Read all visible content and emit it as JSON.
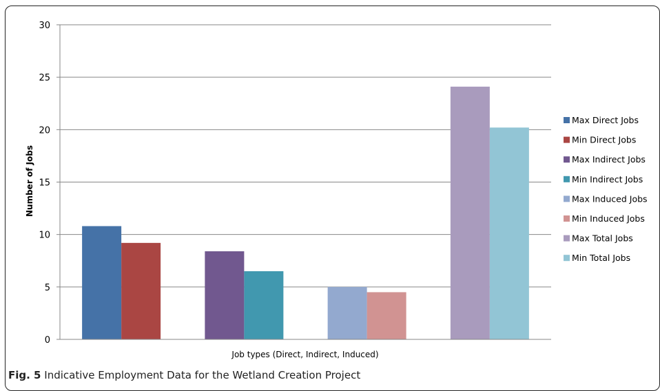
{
  "chart_data": {
    "type": "bar",
    "xlabel": "Job types (Direct, Indirect, Induced)",
    "ylabel": "Number of Jobs",
    "ylim": [
      0,
      30
    ],
    "yticks": [
      0,
      5,
      10,
      15,
      20,
      25,
      30
    ],
    "grid": true,
    "legend_position": "right",
    "groups": [
      [
        "Max Direct Jobs",
        "Min Direct Jobs"
      ],
      [
        "Max Indirect Jobs",
        "Min Indirect Jobs"
      ],
      [
        "Max Induced Jobs",
        "Min Induced Jobs"
      ],
      [
        "Max Total Jobs",
        "Min Total Jobs"
      ]
    ],
    "series": [
      {
        "name": "Max Direct Jobs",
        "value": 10.8,
        "color": "#4572A7"
      },
      {
        "name": "Min Direct Jobs",
        "value": 9.2,
        "color": "#AA4643"
      },
      {
        "name": "Max Indirect Jobs",
        "value": 8.4,
        "color": "#71588F"
      },
      {
        "name": "Min Indirect Jobs",
        "value": 6.5,
        "color": "#4198AF"
      },
      {
        "name": "Max Induced Jobs",
        "value": 5.0,
        "color": "#93A9CF"
      },
      {
        "name": "Min Induced Jobs",
        "value": 4.5,
        "color": "#D19392"
      },
      {
        "name": "Max Total Jobs",
        "value": 24.1,
        "color": "#A99BBD"
      },
      {
        "name": "Min Total Jobs",
        "value": 20.2,
        "color": "#92C5D5"
      }
    ]
  },
  "caption": {
    "label": "Fig. 5",
    "text": "Indicative Employment Data for the Wetland Creation Project"
  }
}
